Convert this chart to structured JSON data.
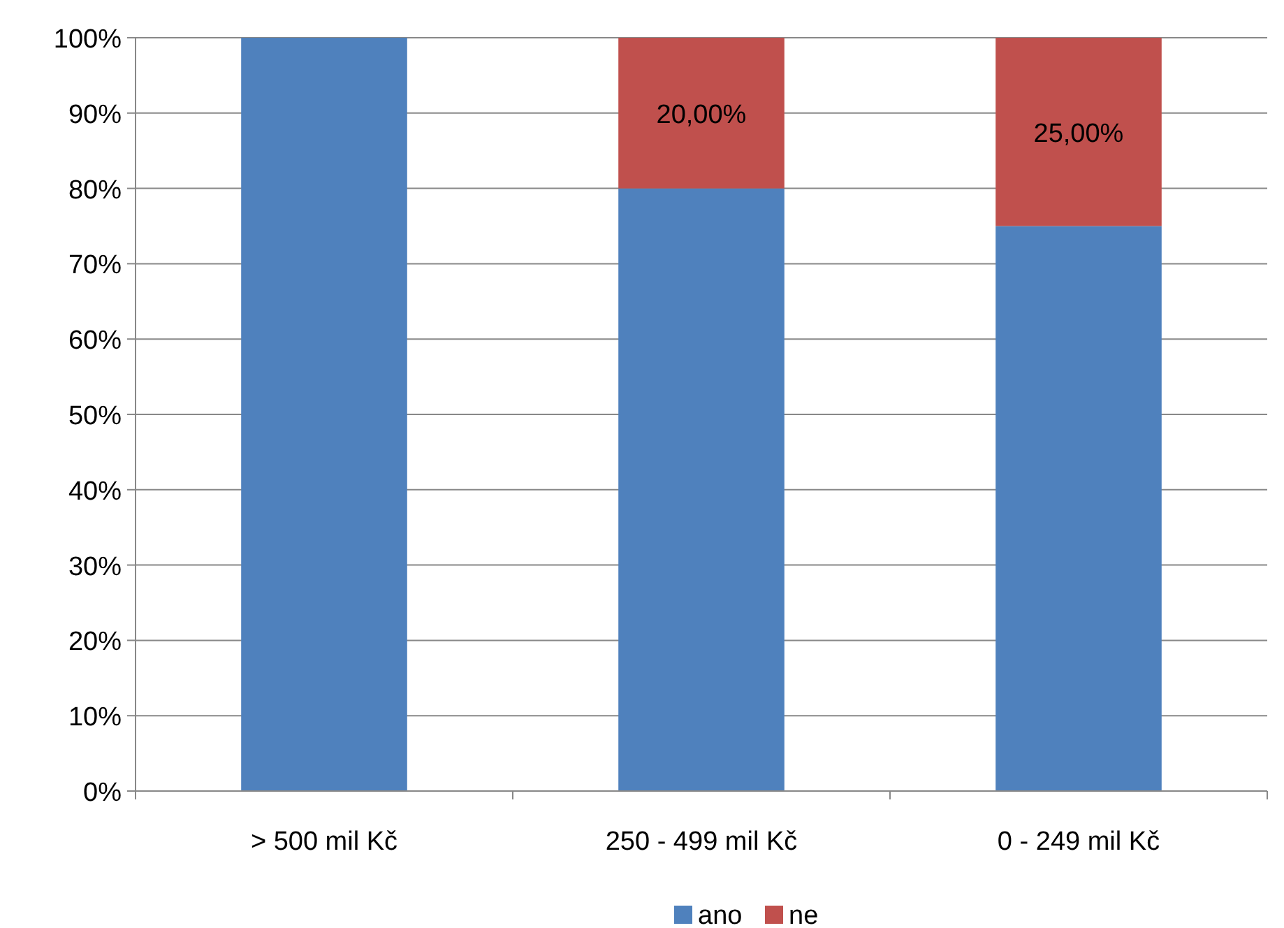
{
  "chart_data": {
    "type": "bar",
    "stacked": true,
    "categories": [
      "> 500 mil Kč",
      "250 - 499 mil Kč",
      "0 - 249 mil Kč"
    ],
    "series": [
      {
        "name": "ano",
        "color": "#4f81bd",
        "values": [
          100,
          80,
          75
        ]
      },
      {
        "name": "ne",
        "color": "#c0504d",
        "values": [
          0,
          20,
          25
        ],
        "value_labels": [
          null,
          "20,00%",
          "25,00%"
        ]
      }
    ],
    "ylim": [
      0,
      100
    ],
    "yticks": [
      {
        "value": 0,
        "label": "0%"
      },
      {
        "value": 10,
        "label": "10%"
      },
      {
        "value": 20,
        "label": "20%"
      },
      {
        "value": 30,
        "label": "30%"
      },
      {
        "value": 40,
        "label": "40%"
      },
      {
        "value": 50,
        "label": "50%"
      },
      {
        "value": 60,
        "label": "60%"
      },
      {
        "value": 70,
        "label": "70%"
      },
      {
        "value": 80,
        "label": "80%"
      },
      {
        "value": 90,
        "label": "90%"
      },
      {
        "value": 100,
        "label": "100%"
      }
    ],
    "grid": "y",
    "legend": "bottom"
  }
}
